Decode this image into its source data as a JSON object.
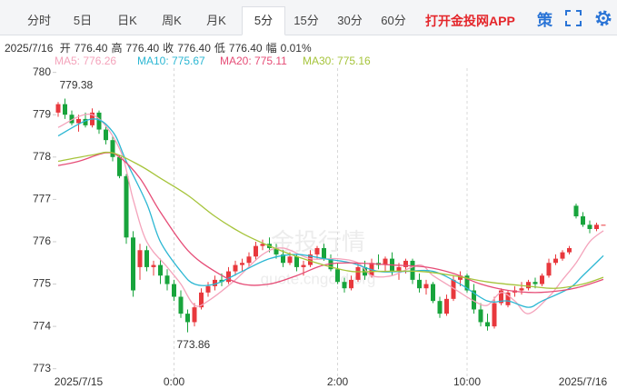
{
  "toolbar": {
    "tabs": [
      "分时",
      "5日",
      "日K",
      "周K",
      "月K",
      "5分",
      "15分",
      "30分",
      "60分"
    ],
    "selected": 5,
    "app_link": "打开金投网APP",
    "strategy": "策"
  },
  "quote": {
    "date": "2025/7/16",
    "items": [
      {
        "label": "开",
        "value": "776.40"
      },
      {
        "label": "高",
        "value": "776.40"
      },
      {
        "label": "收",
        "value": "776.40"
      },
      {
        "label": "低",
        "value": "776.40"
      },
      {
        "label": "幅",
        "value": "0.01%"
      }
    ]
  },
  "chart_data": {
    "type": "candlestick",
    "categories": [
      null,
      null,
      null,
      "2025/7/15",
      null,
      null,
      null,
      null,
      null,
      null,
      null,
      null,
      null,
      null,
      null,
      null,
      null,
      "0:00",
      null,
      null,
      null,
      null,
      null,
      null,
      null,
      null,
      null,
      null,
      null,
      null,
      null,
      null,
      null,
      null,
      null,
      null,
      null,
      null,
      null,
      null,
      null,
      "2:00",
      null,
      null,
      null,
      null,
      null,
      null,
      null,
      null,
      null,
      null,
      null,
      null,
      null,
      null,
      null,
      null,
      null,
      null,
      "10:00",
      null,
      null,
      null,
      null,
      null,
      null,
      null,
      null,
      null,
      null,
      null,
      null,
      null,
      null,
      null,
      null,
      "2025/7/16",
      null,
      null,
      null
    ],
    "open": [
      779.05,
      779.25,
      779.0,
      778.8,
      778.9,
      778.75,
      779.05,
      778.65,
      778.4,
      778.0,
      777.55,
      776.1,
      775.4,
      775.8,
      775.4,
      775.45,
      775.2,
      775.0,
      774.7,
      774.3,
      774.1,
      774.45,
      774.8,
      774.95,
      775.1,
      775.05,
      775.3,
      775.45,
      775.5,
      775.65,
      775.9,
      775.95,
      775.85,
      775.7,
      775.5,
      775.65,
      775.4,
      775.45,
      775.7,
      775.85,
      775.6,
      775.35,
      775.05,
      774.9,
      775.1,
      775.4,
      775.2,
      775.5,
      775.45,
      775.6,
      775.3,
      775.4,
      775.55,
      775.1,
      774.9,
      775.0,
      774.6,
      774.3,
      774.65,
      775.1,
      775.2,
      774.85,
      774.4,
      774.1,
      774.0,
      774.55,
      774.5,
      774.8,
      774.85,
      774.9,
      775.05,
      775.0,
      775.2,
      775.5,
      775.6,
      775.75,
      776.85,
      776.6,
      776.4,
      776.3,
      776.4
    ],
    "high": [
      779.3,
      779.38,
      779.1,
      779.0,
      779.05,
      779.15,
      779.1,
      778.75,
      778.5,
      778.05,
      777.6,
      776.25,
      775.95,
      775.9,
      775.55,
      775.6,
      775.35,
      775.1,
      774.85,
      774.4,
      774.55,
      774.9,
      775.05,
      775.2,
      775.25,
      775.4,
      775.55,
      775.6,
      775.75,
      776.0,
      776.05,
      776.1,
      775.95,
      775.8,
      775.75,
      775.7,
      775.55,
      775.8,
      775.9,
      775.95,
      775.7,
      775.5,
      775.15,
      775.2,
      775.5,
      775.55,
      775.6,
      775.7,
      775.65,
      775.75,
      775.5,
      775.6,
      775.6,
      775.25,
      775.1,
      775.05,
      774.7,
      774.75,
      775.2,
      775.3,
      775.25,
      775.0,
      774.55,
      774.3,
      774.7,
      774.9,
      774.85,
      774.95,
      775.05,
      775.1,
      775.15,
      775.25,
      775.6,
      775.7,
      775.8,
      775.9,
      776.9,
      776.7,
      776.5,
      776.45,
      776.4
    ],
    "low": [
      778.95,
      778.9,
      778.75,
      778.6,
      778.7,
      778.7,
      778.55,
      778.3,
      777.9,
      777.5,
      775.95,
      774.7,
      775.1,
      775.3,
      775.2,
      775.0,
      774.85,
      774.6,
      774.2,
      773.86,
      774.0,
      774.4,
      774.7,
      774.85,
      774.95,
      775.0,
      775.2,
      775.3,
      775.4,
      775.55,
      775.8,
      775.75,
      775.6,
      775.4,
      775.45,
      775.3,
      775.2,
      775.4,
      775.6,
      775.55,
      775.3,
      775.0,
      774.8,
      774.85,
      775.05,
      775.1,
      775.15,
      775.35,
      775.3,
      775.2,
      775.1,
      775.25,
      775.0,
      774.8,
      774.75,
      774.55,
      774.2,
      774.25,
      774.6,
      774.95,
      774.8,
      774.3,
      774.0,
      773.9,
      773.95,
      774.5,
      774.45,
      774.7,
      774.75,
      774.85,
      774.9,
      774.95,
      775.15,
      775.45,
      775.55,
      775.7,
      776.55,
      776.35,
      776.2,
      776.25,
      776.4
    ],
    "close": [
      779.25,
      779.0,
      778.8,
      778.9,
      778.75,
      779.05,
      778.65,
      778.4,
      778.0,
      777.55,
      776.1,
      774.85,
      775.8,
      775.4,
      775.45,
      775.2,
      775.0,
      774.7,
      774.3,
      774.1,
      774.45,
      774.8,
      774.95,
      775.1,
      775.05,
      775.3,
      775.45,
      775.5,
      775.65,
      775.9,
      775.95,
      775.85,
      775.7,
      775.5,
      775.65,
      775.4,
      775.45,
      775.7,
      775.85,
      775.6,
      775.35,
      775.05,
      774.9,
      775.1,
      775.4,
      775.2,
      775.5,
      775.45,
      775.6,
      775.3,
      775.4,
      775.55,
      775.1,
      774.9,
      775.0,
      774.6,
      774.3,
      774.65,
      775.1,
      775.2,
      774.85,
      774.4,
      774.1,
      774.0,
      774.55,
      774.85,
      774.8,
      774.85,
      774.9,
      775.05,
      775.0,
      775.2,
      775.5,
      775.6,
      775.75,
      775.85,
      776.6,
      776.4,
      776.3,
      776.4,
      776.4
    ],
    "up_color": "#e8383d",
    "down_color": "#18a43c",
    "ylim": [
      772.8,
      780.1
    ],
    "yticks": [
      773,
      774,
      775,
      776,
      777,
      778,
      779,
      780
    ],
    "watermark": [
      "金投行情",
      "quote.cngold.org"
    ],
    "series": [
      {
        "name": "MA5: 776.26",
        "color": "#f4a3bb",
        "x": [
          0,
          5,
          9,
          11,
          13,
          16,
          18,
          20,
          22,
          26,
          30,
          33,
          37,
          41,
          44,
          46,
          49,
          53,
          55,
          58,
          61,
          63,
          65,
          67,
          69,
          72,
          74,
          76,
          78,
          80
        ],
        "values": [
          778.7,
          779.0,
          778.2,
          777.0,
          776.0,
          775.4,
          775.0,
          774.5,
          774.6,
          775.1,
          775.7,
          775.85,
          775.6,
          775.6,
          775.5,
          775.2,
          775.2,
          775.45,
          775.2,
          774.9,
          774.6,
          774.5,
          774.8,
          774.6,
          774.3,
          774.7,
          775.1,
          775.5,
          776.0,
          776.26
        ]
      },
      {
        "name": "MA10: 775.67",
        "color": "#2cb7d3",
        "x": [
          0,
          5,
          8,
          10,
          13,
          15,
          18,
          20,
          23,
          27,
          31,
          35,
          39,
          43,
          47,
          51,
          55,
          59,
          63,
          66,
          69,
          71,
          75,
          77,
          80
        ],
        "values": [
          778.5,
          778.9,
          778.6,
          777.9,
          776.9,
          776.0,
          775.3,
          775.0,
          775.0,
          775.3,
          775.6,
          775.7,
          775.6,
          775.5,
          775.3,
          775.3,
          775.3,
          775.0,
          774.6,
          774.6,
          774.45,
          774.6,
          774.9,
          775.2,
          775.67
        ]
      },
      {
        "name": "MA20: 775.11",
        "color": "#e64d77",
        "x": [
          0,
          3,
          7,
          9,
          12,
          15,
          19,
          23,
          27,
          31,
          35,
          39,
          43,
          49,
          54,
          58,
          62,
          66,
          70,
          74,
          77,
          80
        ],
        "values": [
          777.8,
          777.9,
          778.1,
          778.0,
          777.5,
          776.7,
          775.8,
          775.3,
          775.0,
          775.0,
          775.2,
          775.45,
          775.5,
          775.45,
          775.4,
          775.25,
          775.0,
          774.85,
          774.8,
          774.85,
          774.95,
          775.11
        ]
      },
      {
        "name": "MA30: 775.16",
        "color": "#a6c43b",
        "x": [
          0,
          5,
          8,
          12,
          15,
          19,
          23,
          27,
          31,
          35,
          39,
          43,
          47,
          53,
          58,
          63,
          69,
          73,
          77,
          80
        ],
        "values": [
          777.9,
          778.05,
          778.1,
          777.8,
          777.5,
          777.1,
          776.6,
          776.2,
          775.9,
          775.65,
          775.45,
          775.3,
          775.3,
          775.3,
          775.2,
          775.05,
          774.95,
          774.9,
          775.0,
          775.16
        ]
      }
    ]
  }
}
